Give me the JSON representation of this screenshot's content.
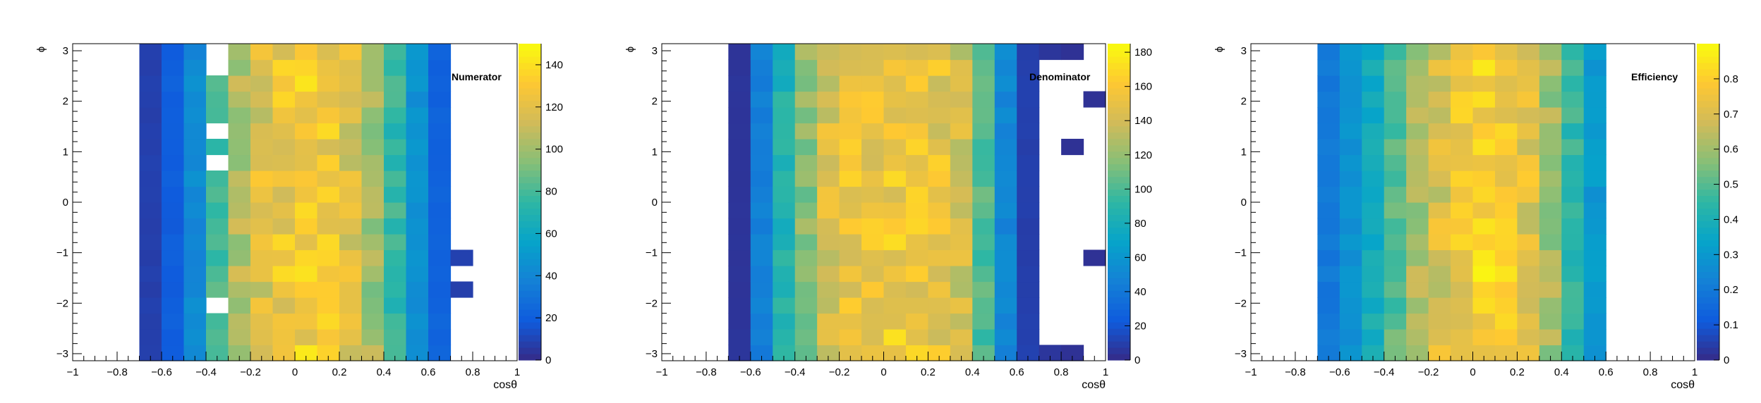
{
  "chart_data": [
    {
      "type": "heatmap",
      "title": "Numerator",
      "xlabel": "cosθ",
      "ylabel": "ϕ",
      "xlim": [
        -1,
        1
      ],
      "ylim": [
        -3.14,
        3.14
      ],
      "x_ticks": [
        "−1",
        "−0.8",
        "−0.6",
        "−0.4",
        "−0.2",
        "0",
        "0.2",
        "0.4",
        "0.6",
        "0.8",
        "1"
      ],
      "y_ticks": [
        "−3",
        "−2",
        "−1",
        "0",
        "1",
        "2",
        "3"
      ],
      "zlim": [
        0,
        150
      ],
      "colorbar_ticks": [
        "0",
        "20",
        "40",
        "60",
        "80",
        "100",
        "120",
        "140"
      ],
      "grid": false,
      "bins": {
        "x_count": 20,
        "y_count": 20,
        "x_range": [
          -1,
          1
        ],
        "y_range": [
          -3.14,
          3.14
        ]
      },
      "profile_peaks": [
        8,
        20,
        42,
        78,
        105,
        118,
        125,
        130,
        126,
        118,
        100,
        75,
        45,
        22,
        8
      ],
      "empty_cells": [
        [
          3,
          3
        ],
        [
          3,
          12
        ],
        [
          3,
          14
        ],
        [
          3,
          18
        ],
        [
          3,
          19
        ],
        [
          14,
          0
        ],
        [
          14,
          1
        ],
        [
          14,
          2
        ],
        [
          14,
          3
        ],
        [
          14,
          5
        ],
        [
          14,
          7
        ],
        [
          14,
          8
        ],
        [
          14,
          9
        ],
        [
          14,
          10
        ],
        [
          14,
          11
        ],
        [
          14,
          12
        ],
        [
          14,
          13
        ],
        [
          14,
          14
        ],
        [
          14,
          15
        ],
        [
          14,
          16
        ],
        [
          14,
          17
        ],
        [
          14,
          18
        ],
        [
          14,
          19
        ],
        [
          15,
          0
        ],
        [
          15,
          1
        ],
        [
          15,
          2
        ],
        [
          15,
          3
        ],
        [
          15,
          4
        ],
        [
          15,
          5
        ],
        [
          15,
          6
        ],
        [
          15,
          7
        ],
        [
          15,
          8
        ],
        [
          15,
          9
        ],
        [
          15,
          10
        ],
        [
          15,
          11
        ],
        [
          15,
          12
        ],
        [
          15,
          13
        ],
        [
          15,
          14
        ],
        [
          15,
          15
        ],
        [
          15,
          16
        ],
        [
          15,
          17
        ],
        [
          15,
          18
        ],
        [
          15,
          19
        ]
      ]
    },
    {
      "type": "heatmap",
      "title": "Denominator",
      "xlabel": "cosθ",
      "ylabel": "ϕ",
      "xlim": [
        -1,
        1
      ],
      "ylim": [
        -3.14,
        3.14
      ],
      "x_ticks": [
        "−1",
        "−0.8",
        "−0.6",
        "−0.4",
        "−0.2",
        "0",
        "0.2",
        "0.4",
        "0.6",
        "0.8",
        "1"
      ],
      "y_ticks": [
        "−3",
        "−2",
        "−1",
        "0",
        "1",
        "2",
        "3"
      ],
      "zlim": [
        0,
        185
      ],
      "colorbar_ticks": [
        "0",
        "20",
        "40",
        "60",
        "80",
        "100",
        "120",
        "140",
        "160",
        "180"
      ],
      "grid": false,
      "bins": {
        "x_count": 20,
        "y_count": 20,
        "x_range": [
          -1,
          1
        ],
        "y_range": [
          -3.14,
          3.14
        ]
      },
      "profile_peaks": [
        5,
        45,
        85,
        118,
        145,
        152,
        155,
        158,
        155,
        150,
        140,
        100,
        50,
        10,
        6
      ],
      "extra_cells": [
        [
          15,
          0
        ],
        [
          15,
          13
        ],
        [
          15,
          19
        ],
        [
          16,
          6
        ],
        [
          16,
          16
        ]
      ],
      "empty_cells": [
        [
          14,
          1
        ],
        [
          14,
          2
        ],
        [
          14,
          3
        ],
        [
          14,
          4
        ],
        [
          14,
          5
        ],
        [
          14,
          6
        ],
        [
          14,
          7
        ],
        [
          14,
          8
        ],
        [
          14,
          9
        ],
        [
          14,
          10
        ],
        [
          14,
          11
        ],
        [
          14,
          12
        ],
        [
          14,
          13
        ],
        [
          14,
          14
        ],
        [
          14,
          15
        ],
        [
          14,
          16
        ],
        [
          14,
          17
        ],
        [
          14,
          18
        ]
      ]
    },
    {
      "type": "heatmap",
      "title": "Efficiency",
      "xlabel": "cosθ",
      "ylabel": "ϕ",
      "xlim": [
        -1,
        1
      ],
      "ylim": [
        -3.14,
        3.14
      ],
      "x_ticks": [
        "−1",
        "−0.8",
        "−0.6",
        "−0.4",
        "−0.2",
        "0",
        "0.2",
        "0.4",
        "0.6",
        "0.8",
        "1"
      ],
      "y_ticks": [
        "−3",
        "−2",
        "−1",
        "0",
        "1",
        "2",
        "3"
      ],
      "zlim": [
        0,
        0.9
      ],
      "colorbar_ticks": [
        "0",
        "0.1",
        "0.2",
        "0.3",
        "0.4",
        "0.5",
        "0.6",
        "0.7",
        "0.8"
      ],
      "grid": false,
      "bins": {
        "x_count": 20,
        "y_count": 20,
        "x_range": [
          -1,
          1
        ],
        "y_range": [
          -3.14,
          3.14
        ]
      },
      "profile_peaks": [
        0.2,
        0.28,
        0.38,
        0.5,
        0.62,
        0.7,
        0.76,
        0.8,
        0.77,
        0.72,
        0.6,
        0.45,
        0.3,
        0.2
      ],
      "empty_cells": [
        [
          13,
          0
        ],
        [
          13,
          1
        ],
        [
          13,
          2
        ],
        [
          13,
          3
        ],
        [
          13,
          4
        ],
        [
          13,
          5
        ],
        [
          13,
          6
        ],
        [
          13,
          7
        ],
        [
          13,
          8
        ],
        [
          13,
          9
        ],
        [
          13,
          10
        ],
        [
          13,
          11
        ],
        [
          13,
          12
        ],
        [
          13,
          13
        ],
        [
          13,
          14
        ],
        [
          13,
          15
        ],
        [
          13,
          16
        ],
        [
          13,
          17
        ],
        [
          13,
          18
        ],
        [
          13,
          19
        ]
      ]
    }
  ]
}
